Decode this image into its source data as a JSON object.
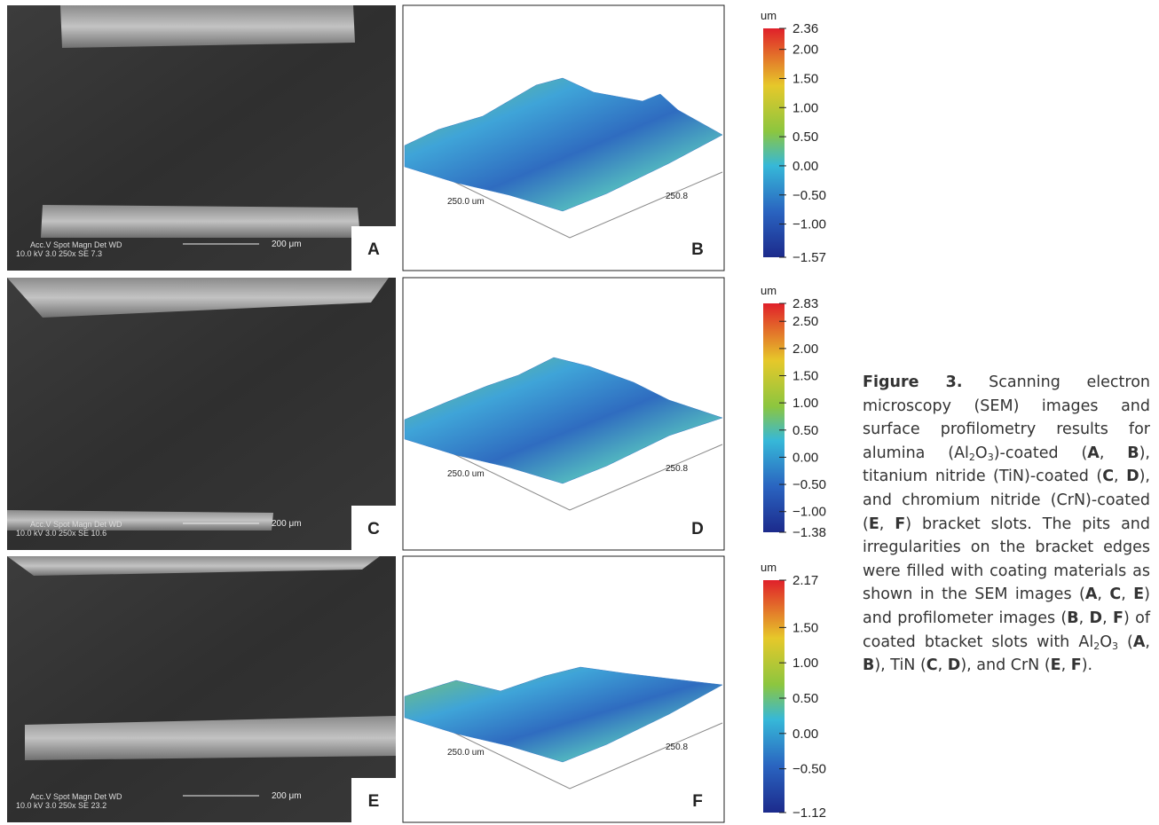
{
  "panels": [
    {
      "sem_label": "A",
      "sem_info": [
        "Acc.V  Spot Magn   Det  WD",
        "10.0 kV 3.0  250x   SE  7.3"
      ],
      "scalebar": "200 μm",
      "profile_label": "B",
      "x_axis_label": "250.0 um",
      "y_axis_label": "250.8",
      "colorbar": {
        "unit": "um",
        "ticks": [
          {
            "value": 2.36,
            "label": "2.36"
          },
          {
            "value": 2,
            "label": "2.00"
          },
          {
            "value": 1.5,
            "label": "1.50"
          },
          {
            "value": 1,
            "label": "1.00"
          },
          {
            "value": 0.5,
            "label": "0.50"
          },
          {
            "value": 0,
            "label": "0.00"
          },
          {
            "value": -0.5,
            "label": "−0.50"
          },
          {
            "value": -1,
            "label": "−1.00"
          },
          {
            "value": -1.57,
            "label": "−1.57"
          }
        ]
      }
    },
    {
      "sem_label": "C",
      "sem_info": [
        "Acc.V  Spot Magn   Det  WD",
        "10.0 kV 3.0  250x   SE  10.6"
      ],
      "scalebar": "200 μm",
      "profile_label": "D",
      "x_axis_label": "250.0 um",
      "y_axis_label": "250.8",
      "colorbar": {
        "unit": "um",
        "ticks": [
          {
            "value": 2.83,
            "label": "2.83"
          },
          {
            "value": 2.5,
            "label": "2.50"
          },
          {
            "value": 2,
            "label": "2.00"
          },
          {
            "value": 1.5,
            "label": "1.50"
          },
          {
            "value": 1,
            "label": "1.00"
          },
          {
            "value": 0.5,
            "label": "0.50"
          },
          {
            "value": 0,
            "label": "0.00"
          },
          {
            "value": -0.5,
            "label": "−0.50"
          },
          {
            "value": -1,
            "label": "−1.00"
          },
          {
            "value": -1.38,
            "label": "−1.38"
          }
        ]
      }
    },
    {
      "sem_label": "E",
      "sem_info": [
        "Acc.V  Spot Magn   Det  WD",
        "10.0 kV 3.0  250x   SE  23.2"
      ],
      "scalebar": "200 μm",
      "profile_label": "F",
      "x_axis_label": "250.0 um",
      "y_axis_label": "250.8",
      "colorbar": {
        "unit": "um",
        "ticks": [
          {
            "value": 2.17,
            "label": "2.17"
          },
          {
            "value": 1.5,
            "label": "1.50"
          },
          {
            "value": 1,
            "label": "1.00"
          },
          {
            "value": 0.5,
            "label": "0.50"
          },
          {
            "value": 0,
            "label": "0.00"
          },
          {
            "value": -0.5,
            "label": "−0.50"
          },
          {
            "value": -1.12,
            "label": "−1.12"
          }
        ]
      }
    }
  ],
  "caption": {
    "parts": [
      "Figure 3.",
      " Scanning electron microscopy (SEM) images and surface profilometry results for alumina (Al",
      "2",
      "O",
      "3",
      ")-coated (",
      "A",
      ", ",
      "B",
      "), titanium nitride (TiN)-coated (",
      "C",
      ", ",
      "D",
      "), and chromium nitride (CrN)-coated (",
      "E",
      ", ",
      "F",
      ") bracket slots. The pits and irregularities on the bracket edges were filled with coating materials as shown in the SEM images (",
      "A",
      ", ",
      "C",
      ", ",
      "E",
      ") and profilometer images (",
      "B",
      ", ",
      "D",
      ", ",
      "F",
      ") of coated btacket slots with Al",
      "2",
      "O",
      "3",
      " (",
      "A",
      ", ",
      "B",
      "), TiN (",
      "C",
      ", ",
      "D",
      "), and CrN (",
      "E",
      ", ",
      "F",
      ")."
    ]
  }
}
